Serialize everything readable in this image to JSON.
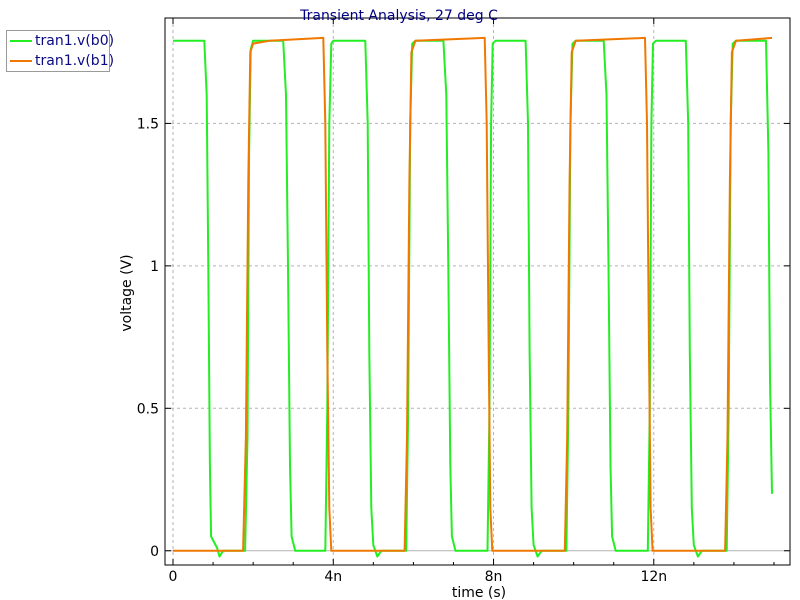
{
  "chart_data": {
    "type": "line",
    "title": "Transient Analysis, 27 deg C",
    "xlabel": "time (s)",
    "ylabel": "voltage (V)",
    "xlim": [
      -0.2,
      15.4
    ],
    "ylim": [
      -0.05,
      1.87
    ],
    "x_unit": "ns",
    "x_ticks": [
      0,
      4,
      8,
      12
    ],
    "x_tick_labels": [
      "0",
      "4n",
      "8n",
      "12n"
    ],
    "y_ticks": [
      0,
      0.5,
      1,
      1.5
    ],
    "y_tick_labels": [
      "0",
      "0.5",
      "1",
      "1.5"
    ],
    "grid": true,
    "legend_position": "top-left",
    "colors": {
      "title": "#000080",
      "axis_text": "#000000",
      "grid": "#b4b4b4",
      "plot_background": "#ffffff"
    },
    "series": [
      {
        "name": "tran1.v(b0)",
        "color": "#22ee22",
        "points": [
          [
            0,
            1.79
          ],
          [
            0.78,
            1.79
          ],
          [
            0.84,
            1.6
          ],
          [
            0.88,
            1.0
          ],
          [
            0.92,
            0.3
          ],
          [
            0.95,
            0.05
          ],
          [
            1.1,
            0.01
          ],
          [
            1.16,
            -0.02
          ],
          [
            1.25,
            0.0
          ],
          [
            1.8,
            0.0
          ],
          [
            1.86,
            0.4
          ],
          [
            1.9,
            1.4
          ],
          [
            1.94,
            1.76
          ],
          [
            2.0,
            1.79
          ],
          [
            2.75,
            1.79
          ],
          [
            2.82,
            1.6
          ],
          [
            2.87,
            1.0
          ],
          [
            2.92,
            0.3
          ],
          [
            2.96,
            0.05
          ],
          [
            3.05,
            0.0
          ],
          [
            3.8,
            0.0
          ],
          [
            3.85,
            0.5
          ],
          [
            3.9,
            1.5
          ],
          [
            3.95,
            1.78
          ],
          [
            4.0,
            1.79
          ],
          [
            4.8,
            1.79
          ],
          [
            4.86,
            1.5
          ],
          [
            4.9,
            0.7
          ],
          [
            4.95,
            0.15
          ],
          [
            5.0,
            0.02
          ],
          [
            5.1,
            -0.02
          ],
          [
            5.2,
            0.0
          ],
          [
            5.82,
            0.0
          ],
          [
            5.87,
            0.5
          ],
          [
            5.92,
            1.5
          ],
          [
            5.97,
            1.78
          ],
          [
            6.05,
            1.79
          ],
          [
            6.75,
            1.79
          ],
          [
            6.82,
            1.6
          ],
          [
            6.87,
            1.0
          ],
          [
            6.92,
            0.3
          ],
          [
            6.96,
            0.05
          ],
          [
            7.05,
            0.0
          ],
          [
            7.85,
            0.0
          ],
          [
            7.9,
            0.5
          ],
          [
            7.94,
            1.5
          ],
          [
            7.98,
            1.78
          ],
          [
            8.05,
            1.79
          ],
          [
            8.8,
            1.79
          ],
          [
            8.86,
            1.5
          ],
          [
            8.9,
            0.7
          ],
          [
            8.95,
            0.15
          ],
          [
            9.0,
            0.02
          ],
          [
            9.1,
            -0.02
          ],
          [
            9.2,
            0.0
          ],
          [
            9.82,
            0.0
          ],
          [
            9.87,
            0.5
          ],
          [
            9.92,
            1.5
          ],
          [
            9.97,
            1.78
          ],
          [
            10.05,
            1.79
          ],
          [
            10.75,
            1.79
          ],
          [
            10.82,
            1.6
          ],
          [
            10.87,
            1.0
          ],
          [
            10.92,
            0.3
          ],
          [
            10.96,
            0.05
          ],
          [
            11.05,
            0.0
          ],
          [
            11.85,
            0.0
          ],
          [
            11.9,
            0.5
          ],
          [
            11.94,
            1.5
          ],
          [
            11.98,
            1.78
          ],
          [
            12.05,
            1.79
          ],
          [
            12.8,
            1.79
          ],
          [
            12.86,
            1.5
          ],
          [
            12.9,
            0.7
          ],
          [
            12.95,
            0.15
          ],
          [
            13.0,
            0.02
          ],
          [
            13.1,
            -0.02
          ],
          [
            13.2,
            0.0
          ],
          [
            13.82,
            0.0
          ],
          [
            13.87,
            0.5
          ],
          [
            13.92,
            1.5
          ],
          [
            13.97,
            1.78
          ],
          [
            14.05,
            1.79
          ],
          [
            14.8,
            1.79
          ],
          [
            14.86,
            1.4
          ],
          [
            14.9,
            0.6
          ],
          [
            14.95,
            0.2
          ]
        ]
      },
      {
        "name": "tran1.v(b1)",
        "color": "#f07800",
        "points": [
          [
            0,
            0.0
          ],
          [
            1.75,
            0.0
          ],
          [
            1.82,
            0.4
          ],
          [
            1.88,
            1.3
          ],
          [
            1.93,
            1.75
          ],
          [
            2.0,
            1.78
          ],
          [
            2.4,
            1.79
          ],
          [
            3.75,
            1.8
          ],
          [
            3.8,
            1.5
          ],
          [
            3.85,
            0.7
          ],
          [
            3.9,
            0.15
          ],
          [
            3.95,
            0.0
          ],
          [
            5.78,
            0.0
          ],
          [
            5.84,
            0.4
          ],
          [
            5.9,
            1.3
          ],
          [
            5.95,
            1.75
          ],
          [
            6.05,
            1.79
          ],
          [
            7.78,
            1.8
          ],
          [
            7.83,
            1.5
          ],
          [
            7.88,
            0.7
          ],
          [
            7.92,
            0.15
          ],
          [
            7.97,
            0.0
          ],
          [
            9.78,
            0.0
          ],
          [
            9.84,
            0.4
          ],
          [
            9.9,
            1.3
          ],
          [
            9.95,
            1.75
          ],
          [
            10.05,
            1.79
          ],
          [
            11.78,
            1.8
          ],
          [
            11.83,
            1.5
          ],
          [
            11.88,
            0.7
          ],
          [
            11.92,
            0.15
          ],
          [
            11.97,
            0.0
          ],
          [
            13.78,
            0.0
          ],
          [
            13.84,
            0.4
          ],
          [
            13.9,
            1.3
          ],
          [
            13.95,
            1.75
          ],
          [
            14.05,
            1.79
          ],
          [
            14.95,
            1.8
          ]
        ]
      }
    ]
  }
}
